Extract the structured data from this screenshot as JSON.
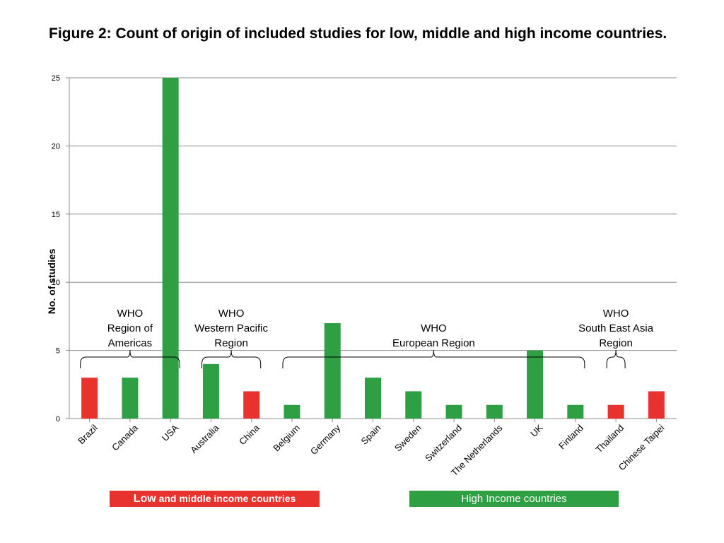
{
  "chart_data": {
    "type": "bar",
    "title": "Figure 2: Count of origin of included studies for low, middle and high income countries.",
    "xlabel": "",
    "ylabel": "No. of studies",
    "ylim": [
      0,
      25
    ],
    "yticks": [
      0,
      5,
      10,
      15,
      20,
      25
    ],
    "grid": true,
    "categories": [
      "Brazil",
      "Canada",
      "USA",
      "Australia",
      "China",
      "Belgium",
      "Germany",
      "Spain",
      "Sweden",
      "Switzerland",
      "The Netherlands",
      "UK",
      "Finland",
      "Thailand",
      "Chinese Taipei"
    ],
    "values": [
      3,
      3,
      25,
      4,
      2,
      1,
      7,
      3,
      2,
      1,
      1,
      5,
      1,
      1,
      2
    ],
    "income_group": [
      "low_middle",
      "high",
      "high",
      "high",
      "low_middle",
      "high",
      "high",
      "high",
      "high",
      "high",
      "high",
      "high",
      "high",
      "low_middle",
      "low_middle"
    ],
    "colors": {
      "low_middle": "#e8322d",
      "high": "#2ea043"
    },
    "regions": [
      {
        "label": [
          "WHO",
          "Region of",
          "Americas"
        ],
        "from": 0,
        "to": 2
      },
      {
        "label": [
          "WHO",
          "Western Pacific",
          "Region"
        ],
        "from": 3,
        "to": 4
      },
      {
        "label": [
          "WHO",
          "European Region"
        ],
        "from": 5,
        "to": 12
      },
      {
        "label": [
          "WHO",
          "South East Asia",
          "Region"
        ],
        "from": 13,
        "to": 13
      }
    ],
    "legend": {
      "low_prefix": "Low",
      "low_suffix": " and middle income countries",
      "high": "High Income countries"
    }
  }
}
